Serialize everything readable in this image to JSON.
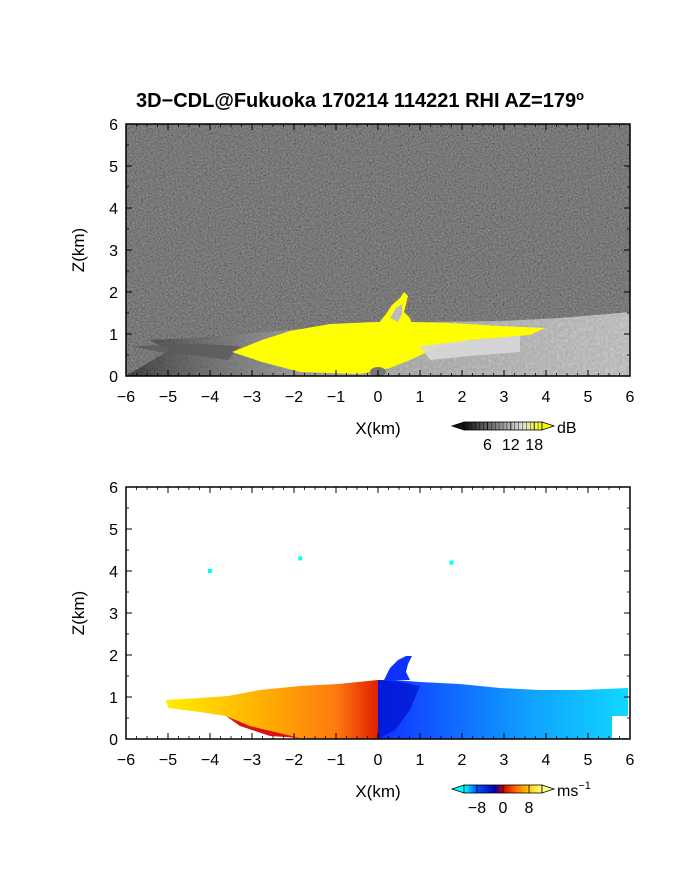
{
  "title_prefix": "3D−CDL@Fukuoka 170214 114221 RHI AZ=179",
  "title_degree": "o",
  "chart_data": [
    {
      "type": "heatmap",
      "quantity": "reflectivity",
      "xlabel": "X(km)",
      "ylabel": "Z(km)",
      "xlim": [
        -6,
        6
      ],
      "ylim": [
        0,
        6
      ],
      "xticks": [
        "−6",
        "−5",
        "−4",
        "−3",
        "−2",
        "−1",
        "0",
        "1",
        "2",
        "3",
        "4",
        "5",
        "6"
      ],
      "yticks": [
        "0",
        "1",
        "2",
        "3",
        "4",
        "5",
        "6"
      ],
      "background": "noise",
      "colorbar": {
        "unit": "dB",
        "ticks": [
          "6",
          "12",
          "18"
        ],
        "tick_values": [
          6,
          12,
          18
        ],
        "range": [
          0,
          20
        ],
        "colors": [
          "#111111",
          "#555555",
          "#999999",
          "#dddddd",
          "#ffff00"
        ],
        "extend": "both"
      },
      "features": [
        {
          "name": "bright-echo",
          "color": "#ffff00",
          "x_range": [
            -3.2,
            4.1
          ],
          "z_range": [
            0,
            1.2
          ]
        },
        {
          "name": "weak-echo",
          "color": "#cccccc",
          "x_range": [
            -5.8,
            6
          ],
          "z_range": [
            0,
            1.2
          ]
        },
        {
          "name": "plume",
          "color": "#ffff00",
          "x_range": [
            0.2,
            0.8
          ],
          "z_range": [
            1.2,
            2.0
          ]
        }
      ]
    },
    {
      "type": "heatmap",
      "quantity": "doppler-velocity",
      "xlabel": "X(km)",
      "ylabel": "Z(km)",
      "xlim": [
        -6,
        6
      ],
      "ylim": [
        0,
        6
      ],
      "xticks": [
        "−6",
        "−5",
        "−4",
        "−3",
        "−2",
        "−1",
        "0",
        "1",
        "2",
        "3",
        "4",
        "5",
        "6"
      ],
      "yticks": [
        "0",
        "1",
        "2",
        "3",
        "4",
        "5",
        "6"
      ],
      "background": "white",
      "colorbar": {
        "unit": "ms",
        "unit_exponent": "−1",
        "ticks": [
          "−8",
          "0",
          "8"
        ],
        "tick_values": [
          -8,
          0,
          8
        ],
        "range": [
          -12,
          12
        ],
        "colors": [
          "#00ffff",
          "#0050ff",
          "#0000aa",
          "#cc0000",
          "#ff6600",
          "#ffcc00",
          "#ffff80"
        ],
        "extend": "both"
      },
      "features": [
        {
          "name": "approaching-flow",
          "sign": "positive",
          "x_range": [
            -5.0,
            0
          ],
          "z_range": [
            0,
            1.3
          ]
        },
        {
          "name": "receding-flow",
          "sign": "negative",
          "x_range": [
            0,
            6
          ],
          "z_range": [
            0,
            1.2
          ]
        },
        {
          "name": "plume",
          "sign": "negative",
          "x_range": [
            0.2,
            0.8
          ],
          "z_range": [
            1.2,
            2.0
          ]
        }
      ],
      "isolated_points": [
        {
          "x": -4.0,
          "z": 4.0
        },
        {
          "x": -1.85,
          "z": 4.3
        },
        {
          "x": 1.75,
          "z": 4.2
        }
      ]
    }
  ]
}
